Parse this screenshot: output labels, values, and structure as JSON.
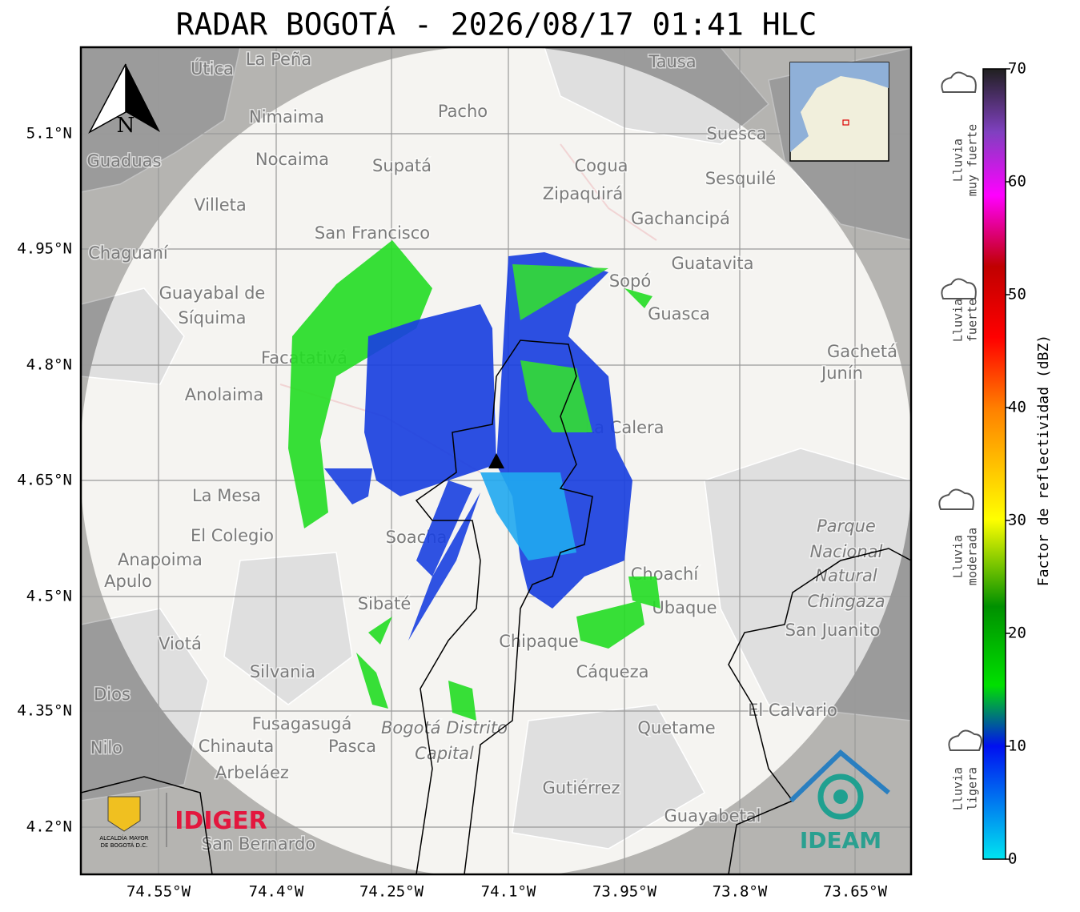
{
  "title": "RADAR BOGOTÁ - 2026/08/17 01:41 HLC",
  "map": {
    "lat_ticks": [
      "5.1°N",
      "4.95°N",
      "4.8°N",
      "4.65°N",
      "4.5°N",
      "4.35°N",
      "4.2°N"
    ],
    "lon_ticks": [
      "74.55°W",
      "74.4°W",
      "74.25°W",
      "74.1°W",
      "73.95°W",
      "73.8°W",
      "73.65°W"
    ],
    "north": "N",
    "places": [
      "La Peña",
      "Útica",
      "Tausa",
      "Pacho",
      "Nimaima",
      "Suesca",
      "Guaduas",
      "Nocaima",
      "Supatá",
      "Cogua",
      "Zipaquirá",
      "Sesquilé",
      "Villeta",
      "Gachancipá",
      "San Francisco",
      "Chaguaní",
      "Guatavita",
      "Sopó",
      "Guayabal de",
      "Síquima",
      "Guasca",
      "Gachetá",
      "Junín",
      "Facatativá",
      "Anolaima",
      "La Calera",
      "La Mesa",
      "El Colegio",
      "Soacha",
      "Anapoima",
      "Apulo",
      "Parque",
      "Nacional",
      "Natural",
      "Chingaza",
      "Choachí",
      "Sibaté",
      "Ubaque",
      "San Juanito",
      "Chipaque",
      "Viotá",
      "Silvania",
      "Cáqueza",
      "Dios",
      "El Calvario",
      "Fusagasugá",
      "Bogotá Distrito",
      "Capital",
      "Quetame",
      "Chinauta",
      "Pasca",
      "Nilo",
      "Arbeláez",
      "Gutiérrez",
      "Guayabetal",
      "San Bernardo"
    ]
  },
  "logos": {
    "alcaldia": [
      "ALCALDÍA MAYOR",
      "DE BOGOTÁ D.C."
    ],
    "idiger": "IDIGER",
    "ideam": "IDEAM"
  },
  "colorbar": {
    "label": "Factor de reflectividad (dBZ)",
    "range": [
      0,
      70
    ],
    "ticks": [
      0,
      10,
      20,
      30,
      40,
      50,
      60,
      70
    ]
  },
  "rain_levels": [
    [
      "Lluvia",
      "muy fuerte"
    ],
    [
      "Lluvia",
      "fuerte"
    ],
    [
      "Lluvia",
      "moderada"
    ],
    [
      "Lluvia",
      "ligera"
    ]
  ]
}
